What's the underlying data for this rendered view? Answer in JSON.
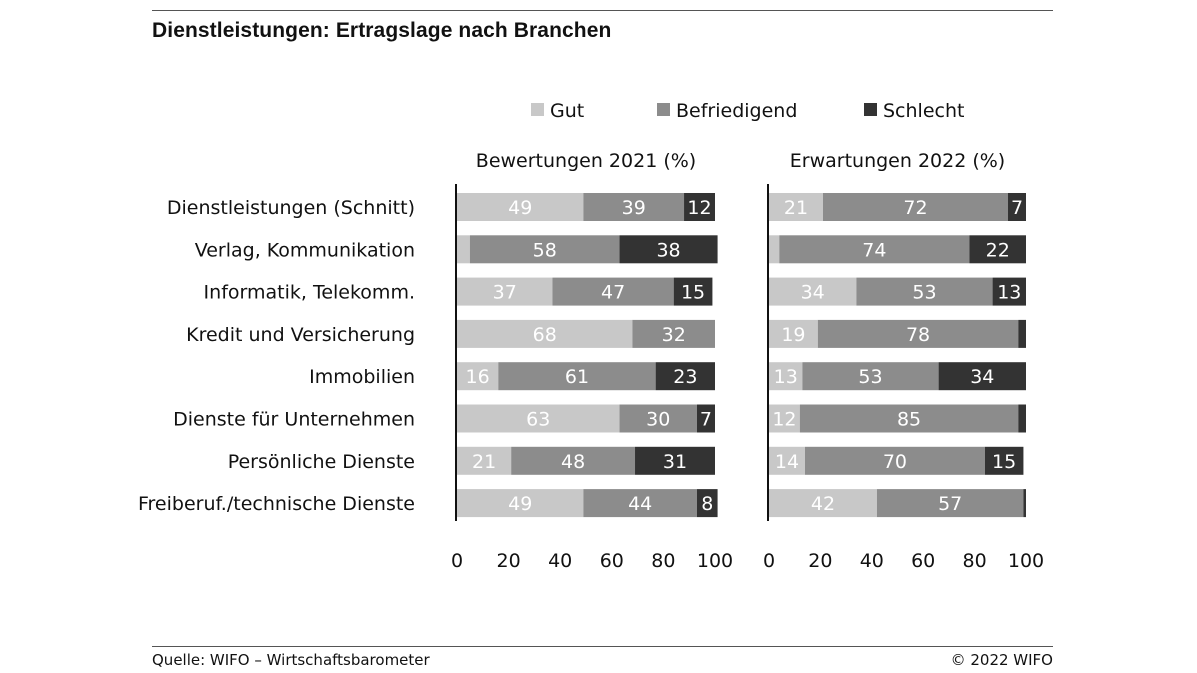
{
  "title": "Dienstleistungen: Ertragslage nach Branchen",
  "footer": {
    "source": "Quelle: WIFO – Wirtschaftsbarometer",
    "copyright": "© 2022 WIFO"
  },
  "colors": {
    "Gut": "#c8c8c8",
    "Befriedigend": "#8c8c8c",
    "Schlecht": "#333333"
  },
  "chart_data": [
    {
      "type": "bar",
      "orientation": "horizontal",
      "stacked": true,
      "title": "Bewertungen 2021 (%)",
      "categories": [
        "Dienstleistungen (Schnitt)",
        "Verlag, Kommunikation",
        "Informatik, Telekomm.",
        "Kredit und Versicherung",
        "Immobilien",
        "Dienste für Unternehmen",
        "Persönliche Dienste",
        "Freiberuf./technische Dienste"
      ],
      "series": [
        {
          "name": "Gut",
          "values": [
            49,
            5,
            37,
            68,
            16,
            63,
            21,
            49
          ],
          "labels": [
            "49",
            "",
            "37",
            "68",
            "16",
            "63",
            "21",
            "49"
          ]
        },
        {
          "name": "Befriedigend",
          "values": [
            39,
            58,
            47,
            32,
            61,
            30,
            48,
            44
          ],
          "labels": [
            "39",
            "58",
            "47",
            "32",
            "61",
            "30",
            "48",
            "44"
          ]
        },
        {
          "name": "Schlecht",
          "values": [
            12,
            38,
            15,
            0,
            23,
            7,
            31,
            8
          ],
          "labels": [
            "12",
            "38",
            "15",
            "",
            "23",
            "7",
            "31",
            "8"
          ]
        }
      ],
      "xlim": [
        0,
        100
      ],
      "xticks": [
        "0",
        "20",
        "40",
        "60",
        "80",
        "100"
      ]
    },
    {
      "type": "bar",
      "orientation": "horizontal",
      "stacked": true,
      "title": "Erwartungen 2022 (%)",
      "categories": [
        "Dienstleistungen (Schnitt)",
        "Verlag, Kommunikation",
        "Informatik, Telekomm.",
        "Kredit und Versicherung",
        "Immobilien",
        "Dienste für Unternehmen",
        "Persönliche Dienste",
        "Freiberuf./technische Dienste"
      ],
      "series": [
        {
          "name": "Gut",
          "values": [
            21,
            4,
            34,
            19,
            13,
            12,
            14,
            42
          ],
          "labels": [
            "21",
            "",
            "34",
            "19",
            "13",
            "12",
            "14",
            "42"
          ]
        },
        {
          "name": "Befriedigend",
          "values": [
            72,
            74,
            53,
            78,
            53,
            85,
            70,
            57
          ],
          "labels": [
            "72",
            "74",
            "53",
            "78",
            "53",
            "85",
            "70",
            "57"
          ]
        },
        {
          "name": "Schlecht",
          "values": [
            7,
            22,
            13,
            3,
            34,
            3,
            15,
            1
          ],
          "labels": [
            "7",
            "22",
            "13",
            "",
            "34",
            "",
            "15",
            ""
          ]
        }
      ],
      "xlim": [
        0,
        100
      ],
      "xticks": [
        "0",
        "20",
        "40",
        "60",
        "80",
        "100"
      ]
    }
  ]
}
